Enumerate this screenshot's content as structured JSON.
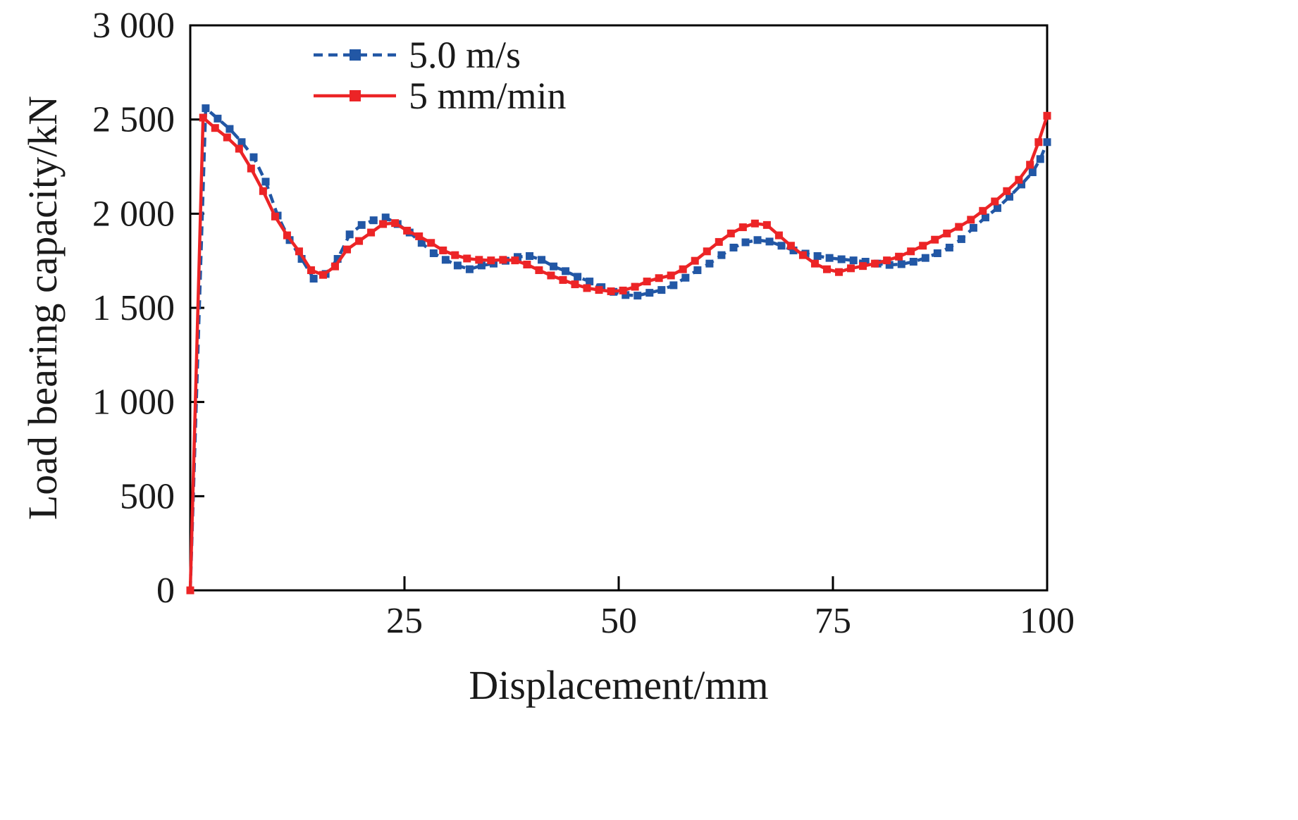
{
  "chart_data": {
    "type": "line",
    "title": "",
    "xlabel": "Displacement/mm",
    "ylabel": "Load bearing capacity/kN",
    "xlim": [
      0,
      100
    ],
    "ylim": [
      0,
      3000
    ],
    "grid": false,
    "legend_position": "top-inside-left",
    "x_ticks": [
      {
        "v": 25,
        "label": "25"
      },
      {
        "v": 50,
        "label": "50"
      },
      {
        "v": 75,
        "label": "75"
      },
      {
        "v": 100,
        "label": "100"
      }
    ],
    "y_ticks": [
      {
        "v": 0,
        "label": "0"
      },
      {
        "v": 500,
        "label": "500"
      },
      {
        "v": 1000,
        "label": "1 000"
      },
      {
        "v": 1500,
        "label": "1 500"
      },
      {
        "v": 2000,
        "label": "2 000"
      },
      {
        "v": 2500,
        "label": "2 500"
      },
      {
        "v": 3000,
        "label": "3 000"
      }
    ],
    "series": [
      {
        "name": "5.0 m/s",
        "color": "#2257a5",
        "line_style": "dashed",
        "marker": "square",
        "points": [
          [
            0,
            0
          ],
          [
            1.8,
            2560
          ],
          [
            3.2,
            2505
          ],
          [
            4.6,
            2450
          ],
          [
            6,
            2380
          ],
          [
            7.4,
            2300
          ],
          [
            8.8,
            2170
          ],
          [
            10.2,
            1990
          ],
          [
            11.6,
            1860
          ],
          [
            13,
            1760
          ],
          [
            14.4,
            1655
          ],
          [
            15.8,
            1680
          ],
          [
            17.2,
            1760
          ],
          [
            18.6,
            1890
          ],
          [
            20,
            1940
          ],
          [
            21.4,
            1965
          ],
          [
            22.8,
            1980
          ],
          [
            24.2,
            1945
          ],
          [
            25.6,
            1900
          ],
          [
            27,
            1845
          ],
          [
            28.4,
            1790
          ],
          [
            29.8,
            1755
          ],
          [
            31.2,
            1725
          ],
          [
            32.6,
            1705
          ],
          [
            34,
            1725
          ],
          [
            35.4,
            1735
          ],
          [
            36.8,
            1750
          ],
          [
            38.2,
            1770
          ],
          [
            39.6,
            1775
          ],
          [
            41,
            1755
          ],
          [
            42.4,
            1720
          ],
          [
            43.8,
            1695
          ],
          [
            45.2,
            1665
          ],
          [
            46.6,
            1640
          ],
          [
            48,
            1610
          ],
          [
            49.4,
            1585
          ],
          [
            50.8,
            1568
          ],
          [
            52.2,
            1565
          ],
          [
            53.6,
            1580
          ],
          [
            55,
            1595
          ],
          [
            56.4,
            1620
          ],
          [
            57.8,
            1660
          ],
          [
            59.2,
            1700
          ],
          [
            60.6,
            1735
          ],
          [
            62,
            1780
          ],
          [
            63.4,
            1820
          ],
          [
            64.8,
            1848
          ],
          [
            66.2,
            1860
          ],
          [
            67.6,
            1852
          ],
          [
            69,
            1830
          ],
          [
            70.4,
            1805
          ],
          [
            71.8,
            1788
          ],
          [
            73.2,
            1775
          ],
          [
            74.6,
            1765
          ],
          [
            76,
            1758
          ],
          [
            77.4,
            1752
          ],
          [
            78.8,
            1745
          ],
          [
            80.2,
            1735
          ],
          [
            81.6,
            1728
          ],
          [
            83,
            1732
          ],
          [
            84.4,
            1745
          ],
          [
            85.8,
            1765
          ],
          [
            87.2,
            1790
          ],
          [
            88.6,
            1820
          ],
          [
            90,
            1865
          ],
          [
            91.4,
            1925
          ],
          [
            92.8,
            1980
          ],
          [
            94.2,
            2030
          ],
          [
            95.6,
            2090
          ],
          [
            97,
            2155
          ],
          [
            98.3,
            2220
          ],
          [
            99.2,
            2290
          ],
          [
            100,
            2380
          ]
        ]
      },
      {
        "name": "5 mm/min",
        "color": "#ec2426",
        "line_style": "solid",
        "marker": "square",
        "points": [
          [
            0,
            0
          ],
          [
            1.5,
            2510
          ],
          [
            2.9,
            2455
          ],
          [
            4.3,
            2405
          ],
          [
            5.7,
            2345
          ],
          [
            7.1,
            2240
          ],
          [
            8.5,
            2120
          ],
          [
            9.9,
            1985
          ],
          [
            11.3,
            1885
          ],
          [
            12.7,
            1800
          ],
          [
            14.1,
            1700
          ],
          [
            15.5,
            1675
          ],
          [
            16.9,
            1720
          ],
          [
            18.3,
            1810
          ],
          [
            19.7,
            1855
          ],
          [
            21.1,
            1900
          ],
          [
            22.5,
            1945
          ],
          [
            23.9,
            1950
          ],
          [
            25.3,
            1910
          ],
          [
            26.7,
            1880
          ],
          [
            28.1,
            1845
          ],
          [
            29.5,
            1805
          ],
          [
            30.9,
            1780
          ],
          [
            32.3,
            1762
          ],
          [
            33.7,
            1755
          ],
          [
            35.1,
            1752
          ],
          [
            36.5,
            1755
          ],
          [
            37.9,
            1752
          ],
          [
            39.3,
            1730
          ],
          [
            40.7,
            1700
          ],
          [
            42.1,
            1672
          ],
          [
            43.5,
            1648
          ],
          [
            44.9,
            1625
          ],
          [
            46.3,
            1605
          ],
          [
            47.7,
            1595
          ],
          [
            49.1,
            1588
          ],
          [
            50.5,
            1592
          ],
          [
            51.9,
            1612
          ],
          [
            53.3,
            1640
          ],
          [
            54.7,
            1658
          ],
          [
            56.1,
            1672
          ],
          [
            57.5,
            1705
          ],
          [
            58.9,
            1750
          ],
          [
            60.3,
            1800
          ],
          [
            61.7,
            1850
          ],
          [
            63.1,
            1895
          ],
          [
            64.5,
            1928
          ],
          [
            65.9,
            1948
          ],
          [
            67.3,
            1940
          ],
          [
            68.7,
            1885
          ],
          [
            70.1,
            1830
          ],
          [
            71.5,
            1780
          ],
          [
            72.9,
            1735
          ],
          [
            74.3,
            1705
          ],
          [
            75.7,
            1690
          ],
          [
            77.1,
            1710
          ],
          [
            78.5,
            1722
          ],
          [
            79.9,
            1735
          ],
          [
            81.3,
            1752
          ],
          [
            82.7,
            1772
          ],
          [
            84.1,
            1800
          ],
          [
            85.5,
            1830
          ],
          [
            86.9,
            1862
          ],
          [
            88.3,
            1895
          ],
          [
            89.7,
            1930
          ],
          [
            91.1,
            1968
          ],
          [
            92.5,
            2015
          ],
          [
            93.9,
            2065
          ],
          [
            95.3,
            2120
          ],
          [
            96.7,
            2180
          ],
          [
            98,
            2260
          ],
          [
            99,
            2380
          ],
          [
            100,
            2520
          ]
        ]
      }
    ]
  },
  "colors": {
    "frame": "#000000",
    "background": "#ffffff",
    "series_blue": "#2257a5",
    "series_red": "#ec2426"
  }
}
